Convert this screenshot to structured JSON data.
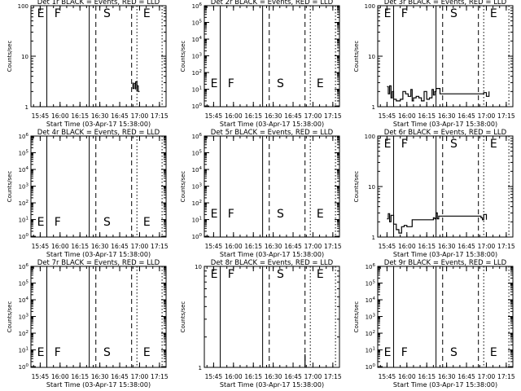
{
  "figure": {
    "background": "#ffffff",
    "foreground": "#000000"
  },
  "chart_data": [
    {
      "type": "line",
      "title": "Det 1r BLACK = Events, RED = LLD",
      "ylabel": "Counts/sec",
      "xlabel": "Start Time (03-Apr-17 15:38:00)",
      "y_scale": "log",
      "ylim": [
        1,
        100
      ],
      "ytick_labels": [
        "1",
        "10",
        "100"
      ],
      "ytick_values": [
        1,
        10,
        100
      ],
      "xtick_labels": [
        "15:45",
        "16:00",
        "16:15",
        "16:30",
        "16:45",
        "17:00",
        "17:15"
      ],
      "markers": [
        "E",
        "F",
        "S",
        "E"
      ],
      "series": [
        {
          "x": [
            "16:55",
            "16:55",
            "16:56",
            "16:57",
            "16:57",
            "16:58",
            "16:58",
            "16:59",
            "17:00"
          ],
          "y": [
            3.0,
            2.3,
            2.9,
            2.2,
            3.1,
            2.0,
            2.6,
            2.0,
            2.0
          ]
        }
      ]
    },
    {
      "type": "line",
      "title": "Det 2r BLACK = Events, RED = LLD",
      "ylabel": "Counts/sec",
      "xlabel": "Start Time (03-Apr-17 15:38:00)",
      "y_scale": "log",
      "ylim": [
        0.9,
        1000000.0
      ],
      "ytick_labels": [
        "10^0",
        "10^1",
        "10^2",
        "10^3",
        "10^4",
        "10^5",
        "10^6"
      ],
      "ytick_values": [
        1,
        10,
        100,
        1000,
        10000,
        100000,
        1000000
      ],
      "xtick_labels": [
        "15:45",
        "16:00",
        "16:15",
        "16:30",
        "16:45",
        "17:00",
        "17:15"
      ],
      "markers": [
        "E",
        "F",
        "S",
        "E"
      ],
      "series": []
    },
    {
      "type": "line",
      "title": "Det 3r BLACK = Events, RED = LLD",
      "ylabel": "Counts/sec",
      "xlabel": "Start Time (03-Apr-17 15:38:00)",
      "y_scale": "log",
      "ylim": [
        1,
        100
      ],
      "ytick_labels": [
        "1",
        "10",
        "100"
      ],
      "ytick_values": [
        1,
        10,
        100
      ],
      "xtick_labels": [
        "15:45",
        "16:00",
        "16:15",
        "16:30",
        "16:45",
        "17:00",
        "17:15"
      ],
      "markers": [
        "E",
        "F",
        "S",
        "E"
      ],
      "series": [
        {
          "x": [
            "15:45",
            "15:46",
            "15:47",
            "15:48",
            "15:49",
            "15:50",
            "15:52",
            "15:55",
            "15:57",
            "15:59",
            "16:01",
            "16:03",
            "16:04",
            "16:05",
            "16:07",
            "16:09",
            "16:11",
            "16:13",
            "16:15",
            "16:17",
            "16:19",
            "16:20",
            "16:21",
            "16:22",
            "16:25",
            "16:58",
            "17:00",
            "17:02"
          ],
          "y": [
            2.5,
            1.8,
            2.6,
            1.5,
            2.0,
            1.4,
            1.3,
            1.4,
            2.0,
            1.8,
            1.6,
            2.2,
            1.3,
            1.5,
            1.6,
            1.5,
            1.3,
            2.0,
            1.4,
            1.5,
            2.2,
            1.7,
            2.0,
            2.3,
            1.8,
            1.9,
            1.6,
            2.0
          ]
        }
      ]
    },
    {
      "type": "line",
      "title": "Det 4r BLACK = Events, RED = LLD",
      "ylabel": "Counts/sec",
      "xlabel": "Start Time (03-Apr-17 15:38:00)",
      "y_scale": "log",
      "ylim": [
        0.9,
        1000000.0
      ],
      "ytick_labels": [
        "10^0",
        "10^1",
        "10^2",
        "10^3",
        "10^4",
        "10^5",
        "10^6"
      ],
      "ytick_values": [
        1,
        10,
        100,
        1000,
        10000,
        100000,
        1000000
      ],
      "xtick_labels": [
        "15:45",
        "16:00",
        "16:15",
        "16:30",
        "16:45",
        "17:00",
        "17:15"
      ],
      "markers": [
        "E",
        "F",
        "S",
        "E"
      ],
      "series": []
    },
    {
      "type": "line",
      "title": "Det 5r BLACK = Events, RED = LLD",
      "ylabel": "Counts/sec",
      "xlabel": "Start Time (03-Apr-17 15:38:00)",
      "y_scale": "log",
      "ylim": [
        0.9,
        1000000.0
      ],
      "ytick_labels": [
        "10^0",
        "10^1",
        "10^2",
        "10^3",
        "10^4",
        "10^5",
        "10^6"
      ],
      "ytick_values": [
        1,
        10,
        100,
        1000,
        10000,
        100000,
        1000000
      ],
      "xtick_labels": [
        "15:45",
        "16:00",
        "16:15",
        "16:30",
        "16:45",
        "17:00",
        "17:15"
      ],
      "markers": [
        "E",
        "F",
        "S",
        "E"
      ],
      "series": []
    },
    {
      "type": "line",
      "title": "Det 6r BLACK = Events, RED = LLD",
      "ylabel": "Counts/sec",
      "xlabel": "Start Time (03-Apr-17 15:38:00)",
      "y_scale": "log",
      "ylim": [
        1,
        100
      ],
      "ytick_labels": [
        "1",
        "10",
        "100"
      ],
      "ytick_values": [
        1,
        10,
        100
      ],
      "xtick_labels": [
        "15:45",
        "16:00",
        "16:15",
        "16:30",
        "16:45",
        "17:00",
        "17:15"
      ],
      "markers": [
        "E",
        "F",
        "S",
        "E"
      ],
      "series": [
        {
          "x": [
            "15:45",
            "15:46",
            "15:47",
            "15:48",
            "15:50",
            "15:52",
            "15:54",
            "15:56",
            "15:58",
            "16:00",
            "16:04",
            "16:08",
            "16:12",
            "16:15",
            "16:18",
            "16:20",
            "16:21",
            "16:22",
            "16:23",
            "16:24",
            "16:56",
            "16:57",
            "16:58",
            "17:00"
          ],
          "y": [
            2.3,
            2.9,
            2.0,
            2.7,
            1.8,
            1.4,
            1.2,
            1.6,
            1.7,
            1.6,
            2.2,
            2.2,
            2.2,
            2.2,
            2.2,
            2.4,
            2.3,
            3.0,
            2.3,
            2.6,
            2.4,
            2.2,
            2.8,
            2.2
          ]
        }
      ]
    },
    {
      "type": "line",
      "title": "Det 7r BLACK = Events, RED = LLD",
      "ylabel": "Counts/sec",
      "xlabel": "Start Time (03-Apr-17 15:38:00)",
      "y_scale": "log",
      "ylim": [
        0.9,
        1000000.0
      ],
      "ytick_labels": [
        "10^0",
        "10^1",
        "10^2",
        "10^3",
        "10^4",
        "10^5",
        "10^6"
      ],
      "ytick_values": [
        1,
        10,
        100,
        1000,
        10000,
        100000,
        1000000
      ],
      "xtick_labels": [
        "15:45",
        "16:00",
        "16:15",
        "16:30",
        "16:45",
        "17:00",
        "17:15"
      ],
      "markers": [
        "E",
        "F",
        "S",
        "E"
      ],
      "series": []
    },
    {
      "type": "line",
      "title": "Det 8r BLACK = Events, RED = LLD",
      "ylabel": "Counts/sec",
      "xlabel": "Start Time (03-Apr-17 15:38:00)",
      "y_scale": "log",
      "ylim": [
        1,
        10
      ],
      "ytick_labels": [
        "1",
        "10"
      ],
      "ytick_values": [
        1,
        10
      ],
      "xtick_labels": [
        "15:45",
        "16:00",
        "16:15",
        "16:30",
        "16:45",
        "17:00",
        "17:15"
      ],
      "markers": [
        "E",
        "F",
        "S",
        "E"
      ],
      "series": [
        {
          "x": [
            "16:54",
            "16:54"
          ],
          "y": [
            1.0,
            1.35
          ]
        }
      ]
    },
    {
      "type": "line",
      "title": "Det 9r BLACK = Events, RED = LLD",
      "ylabel": "Counts/sec",
      "xlabel": "Start Time (03-Apr-17 15:38:00)",
      "y_scale": "log",
      "ylim": [
        0.9,
        1000000.0
      ],
      "ytick_labels": [
        "10^0",
        "10^1",
        "10^2",
        "10^3",
        "10^4",
        "10^5",
        "10^6"
      ],
      "ytick_values": [
        1,
        10,
        100,
        1000,
        10000,
        100000,
        1000000
      ],
      "xtick_labels": [
        "15:45",
        "16:00",
        "16:15",
        "16:30",
        "16:45",
        "17:00",
        "17:15"
      ],
      "markers": [
        "E",
        "F",
        "S",
        "E"
      ],
      "series": []
    }
  ]
}
